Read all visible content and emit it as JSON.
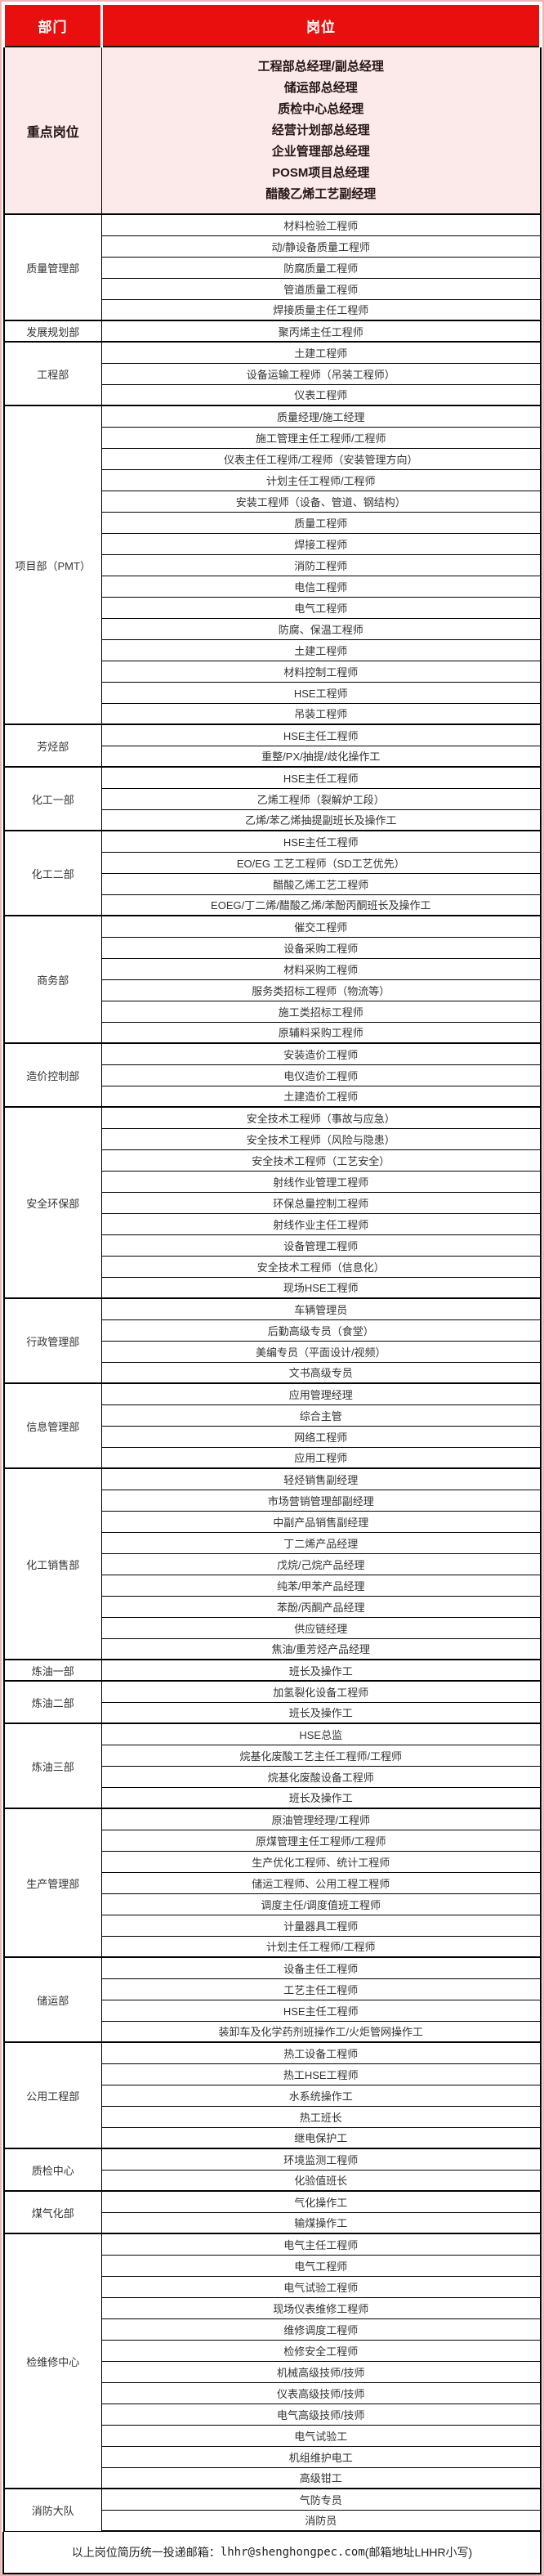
{
  "table": {
    "header": {
      "department": "部门",
      "position": "岗位"
    },
    "highlight": {
      "department": "重点岗位",
      "positions": [
        "工程部总经理/副总经理",
        "储运部总经理",
        "质检中心总经理",
        "经营计划部总经理",
        "企业管理部总经理",
        "POSM项目总经理",
        "醋酸乙烯工艺副经理"
      ]
    },
    "departments": [
      {
        "name": "质量管理部",
        "positions": [
          "材料检验工程师",
          "动/静设备质量工程师",
          "防腐质量工程师",
          "管道质量工程师",
          "焊接质量主任工程师"
        ]
      },
      {
        "name": "发展规划部",
        "positions": [
          "聚丙烯主任工程师"
        ]
      },
      {
        "name": "工程部",
        "positions": [
          "土建工程师",
          "设备运输工程师（吊装工程师）",
          "仪表工程师"
        ]
      },
      {
        "name": "项目部（PMT）",
        "positions": [
          "质量经理/施工经理",
          "施工管理主任工程师/工程师",
          "仪表主任工程师/工程师（安装管理方向）",
          "计划主任工程师/工程师",
          "安装工程师（设备、管道、钢结构）",
          "质量工程师",
          "焊接工程师",
          "消防工程师",
          "电信工程师",
          "电气工程师",
          "防腐、保温工程师",
          "土建工程师",
          "材料控制工程师",
          "HSE工程师",
          "吊装工程师"
        ]
      },
      {
        "name": "芳烃部",
        "positions": [
          "HSE主任工程师",
          "重整/PX/抽提/歧化操作工"
        ]
      },
      {
        "name": "化工一部",
        "positions": [
          "HSE主任工程师",
          "乙烯工程师（裂解炉工段）",
          "乙烯/苯乙烯抽提副班长及操作工"
        ]
      },
      {
        "name": "化工二部",
        "positions": [
          "HSE主任工程师",
          "EO/EG 工艺工程师（SD工艺优先）",
          "醋酸乙烯工艺工程师",
          "EOEG/丁二烯/醋酸乙烯/苯酚丙酮班长及操作工"
        ]
      },
      {
        "name": "商务部",
        "positions": [
          "催交工程师",
          "设备采购工程师",
          "材料采购工程师",
          "服务类招标工程师（物流等）",
          "施工类招标工程师",
          "原辅料采购工程师"
        ]
      },
      {
        "name": "造价控制部",
        "positions": [
          "安装造价工程师",
          "电仪造价工程师",
          "土建造价工程师"
        ]
      },
      {
        "name": "安全环保部",
        "positions": [
          "安全技术工程师（事故与应急）",
          "安全技术工程师（风险与隐患）",
          "安全技术工程师（工艺安全）",
          "射线作业管理工程师",
          "环保总量控制工程师",
          "射线作业主任工程师",
          "设备管理工程师",
          "安全技术工程师（信息化）",
          "现场HSE工程师"
        ]
      },
      {
        "name": "行政管理部",
        "positions": [
          "车辆管理员",
          "后勤高级专员（食堂）",
          "美编专员（平面设计/视频）",
          "文书高级专员"
        ]
      },
      {
        "name": "信息管理部",
        "positions": [
          "应用管理经理",
          "综合主管",
          "网络工程师",
          "应用工程师"
        ]
      },
      {
        "name": "化工销售部",
        "positions": [
          "轻烃销售副经理",
          "市场营销管理部副经理",
          "中副产品销售副经理",
          "丁二烯产品经理",
          "戊烷/己烷产品经理",
          "纯苯/甲苯产品经理",
          "苯酚/丙酮产品经理",
          "供应链经理",
          "焦油/重芳烃产品经理"
        ]
      },
      {
        "name": "炼油一部",
        "positions": [
          "班长及操作工"
        ]
      },
      {
        "name": "炼油二部",
        "positions": [
          "加氢裂化设备工程师",
          "班长及操作工"
        ]
      },
      {
        "name": "炼油三部",
        "positions": [
          "HSE总监",
          "烷基化废酸工艺主任工程师/工程师",
          "烷基化废酸设备工程师",
          "班长及操作工"
        ]
      },
      {
        "name": "生产管理部",
        "positions": [
          "原油管理经理/工程师",
          "原煤管理主任工程师/工程师",
          "生产优化工程师、统计工程师",
          "储运工程师、公用工程工程师",
          "调度主任/调度值班工程师",
          "计量器具工程师",
          "计划主任工程师/工程师"
        ]
      },
      {
        "name": "储运部",
        "positions": [
          "设备主任工程师",
          "工艺主任工程师",
          "HSE主任工程师",
          "装卸车及化学药剂班操作工/火炬管网操作工"
        ]
      },
      {
        "name": "公用工程部",
        "positions": [
          "热工设备工程师",
          "热工HSE工程师",
          "水系统操作工",
          "热工班长",
          "继电保护工"
        ]
      },
      {
        "name": "质检中心",
        "positions": [
          "环境监测工程师",
          "化验值班长"
        ]
      },
      {
        "name": "煤气化部",
        "positions": [
          "气化操作工",
          "输煤操作工"
        ]
      },
      {
        "name": "检维修中心",
        "positions": [
          "电气主任工程师",
          "电气工程师",
          "电气试验工程师",
          "现场仪表维修工程师",
          "维修调度工程师",
          "检修安全工程师",
          "机械高级技师/技师",
          "仪表高级技师/技师",
          "电气高级技师/技师",
          "电气试验工",
          "机组维护电工",
          "高级钳工"
        ]
      },
      {
        "name": "消防大队",
        "positions": [
          "气防专员",
          "消防员"
        ]
      }
    ]
  },
  "footer": {
    "prefix": "以上岗位简历统一投递邮箱：",
    "email": "lhhr@shenghongpec.com",
    "suffix": "(邮箱地址LHHR小写)"
  },
  "colors": {
    "header_bg": "#e90f0f",
    "header_text": "#ffffff",
    "highlight_bg": "#fce9e9",
    "body_text": "#333333",
    "border": "#000000",
    "page_border": "#f0b4b4"
  }
}
